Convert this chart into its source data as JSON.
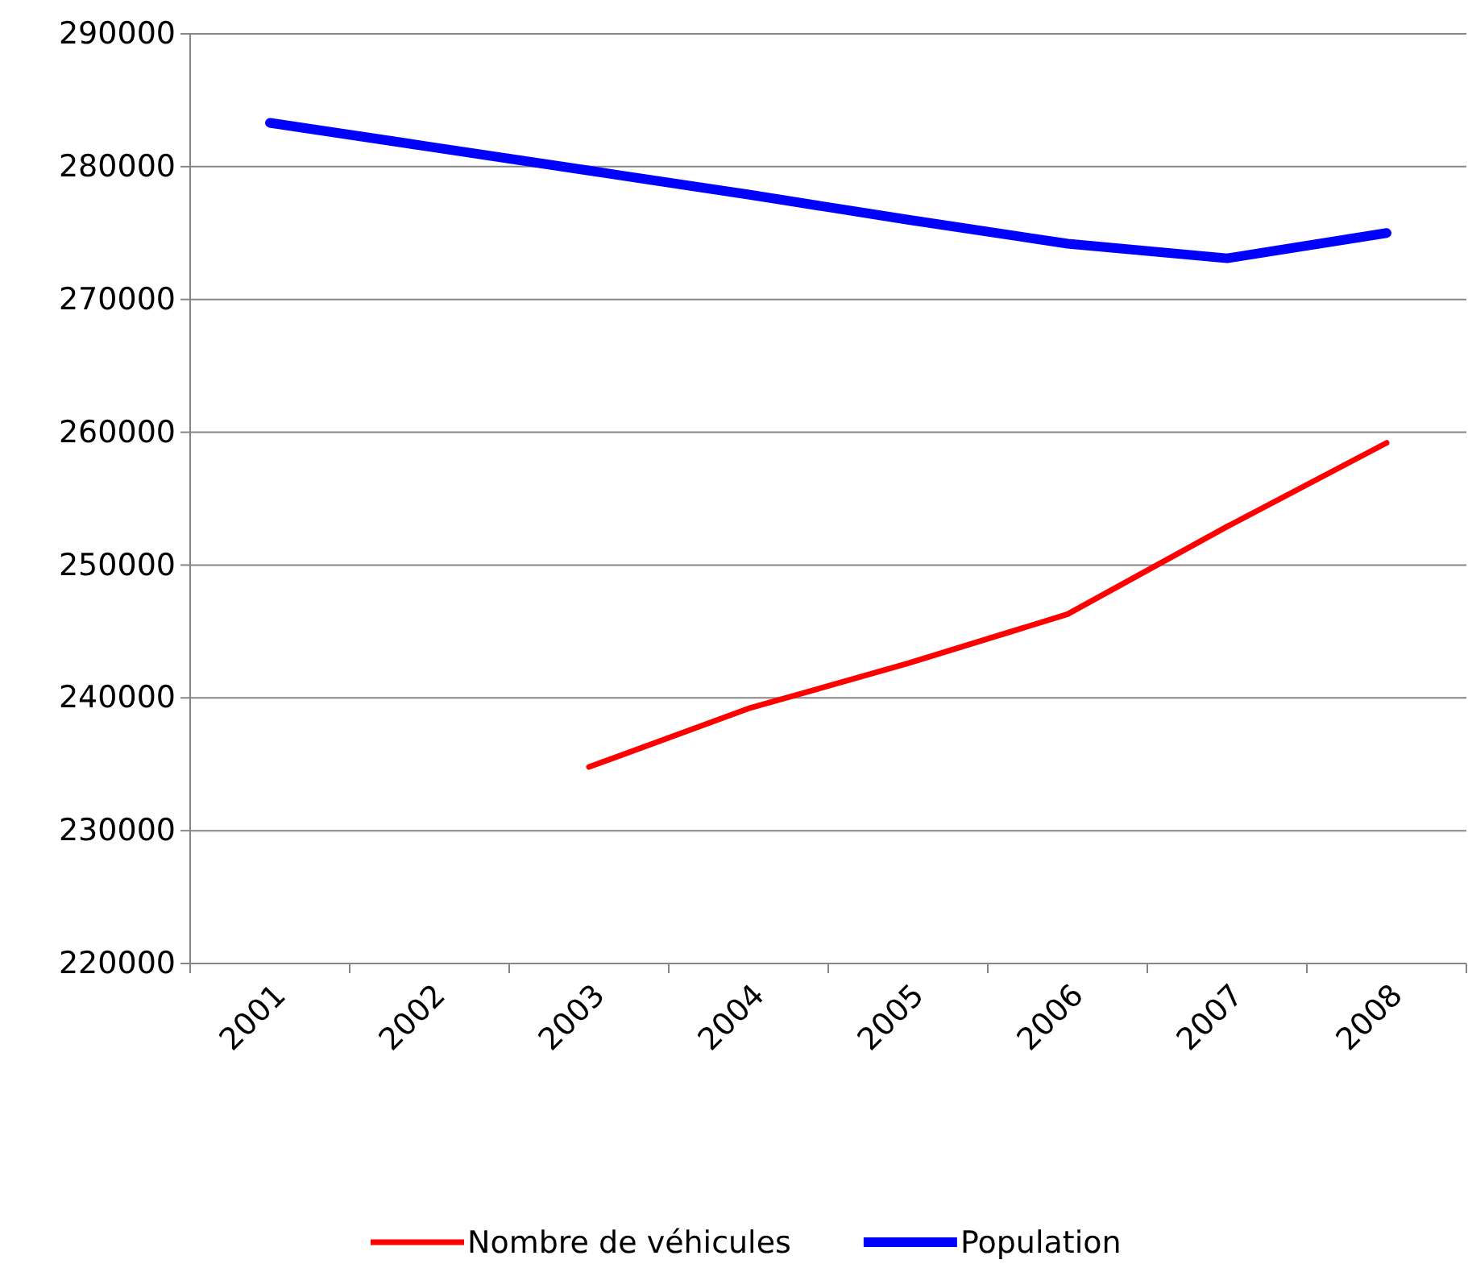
{
  "chart_data": {
    "type": "line",
    "categories": [
      "2001",
      "2002",
      "2003",
      "2004",
      "2005",
      "2006",
      "2007",
      "2008"
    ],
    "series": [
      {
        "name": "Nombre de véhicules",
        "color": "#ff0000",
        "values": [
          null,
          null,
          234800,
          239200,
          242600,
          246300,
          252900,
          259200
        ]
      },
      {
        "name": "Population",
        "color": "#0000ff",
        "values": [
          283300,
          281500,
          279700,
          277900,
          276000,
          274200,
          273100,
          275000
        ]
      }
    ],
    "ylim": [
      220000,
      290000
    ],
    "yticks": [
      220000,
      230000,
      240000,
      250000,
      260000,
      270000,
      280000,
      290000
    ],
    "grid": "y",
    "legend": "bottom",
    "marker": "none",
    "line_style": "solid"
  }
}
